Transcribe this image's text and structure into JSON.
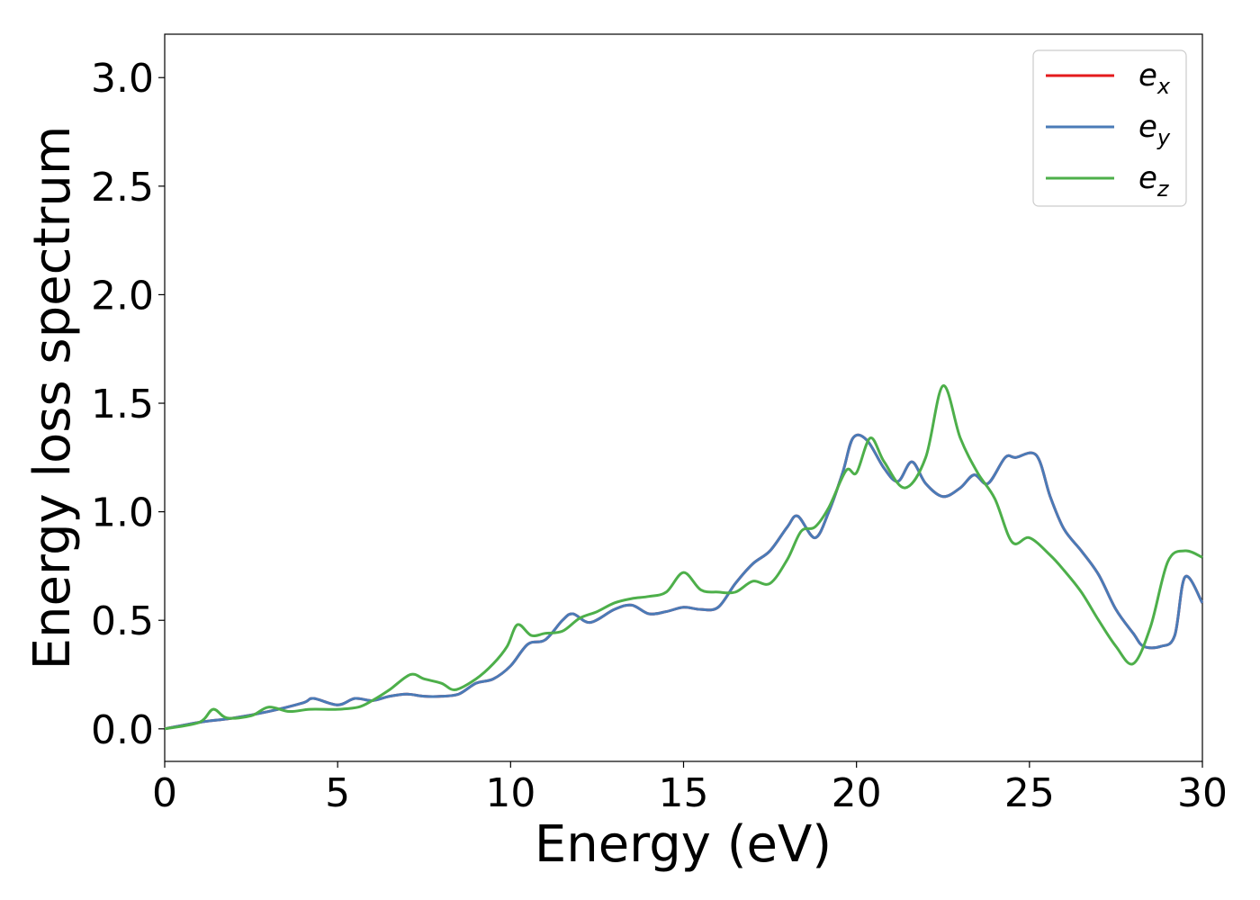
{
  "chart_data": {
    "type": "line",
    "xlabel": "Energy (eV)",
    "ylabel": "Energy loss spectrum",
    "xlim": [
      0,
      30
    ],
    "ylim": [
      -0.15,
      3.2
    ],
    "xticks": [
      0,
      5,
      10,
      15,
      20,
      25,
      30
    ],
    "xtick_labels": [
      "0",
      "5",
      "10",
      "15",
      "20",
      "25",
      "30"
    ],
    "yticks": [
      0.0,
      0.5,
      1.0,
      1.5,
      2.0,
      2.5,
      3.0
    ],
    "ytick_labels": [
      "0.0",
      "0.5",
      "1.0",
      "1.5",
      "2.0",
      "2.5",
      "3.0"
    ],
    "grid": false,
    "legend_position": "top-right",
    "series": [
      {
        "name": "e",
        "sub": "x",
        "color": "#e41a1c",
        "x": [
          0,
          1,
          2,
          3,
          4,
          4.3,
          5,
          5.5,
          6,
          6.5,
          7,
          7.5,
          8,
          8.5,
          9,
          9.5,
          10,
          10.5,
          11,
          11.5,
          11.8,
          12.3,
          13,
          13.5,
          14,
          14.5,
          15,
          15.5,
          16,
          16.5,
          17,
          17.5,
          18,
          18.3,
          18.8,
          19.2,
          19.6,
          19.9,
          20.3,
          20.8,
          21.2,
          21.6,
          22,
          22.5,
          23,
          23.4,
          23.8,
          24.3,
          24.6,
          25.2,
          25.6,
          26,
          26.5,
          27,
          27.5,
          28,
          28.3,
          28.8,
          29.2,
          29.5,
          30
        ],
        "y": [
          0,
          0.03,
          0.05,
          0.08,
          0.12,
          0.14,
          0.11,
          0.14,
          0.13,
          0.15,
          0.16,
          0.15,
          0.15,
          0.16,
          0.21,
          0.23,
          0.29,
          0.39,
          0.41,
          0.5,
          0.53,
          0.49,
          0.55,
          0.57,
          0.53,
          0.54,
          0.56,
          0.55,
          0.56,
          0.67,
          0.76,
          0.82,
          0.93,
          0.98,
          0.88,
          1.0,
          1.18,
          1.34,
          1.33,
          1.2,
          1.14,
          1.23,
          1.13,
          1.07,
          1.11,
          1.17,
          1.13,
          1.25,
          1.25,
          1.26,
          1.07,
          0.92,
          0.82,
          0.71,
          0.55,
          0.44,
          0.38,
          0.38,
          0.43,
          0.7,
          0.58
        ]
      },
      {
        "name": "e",
        "sub": "y",
        "color": "#4a7bb7",
        "x": [
          0,
          1,
          2,
          3,
          4,
          4.3,
          5,
          5.5,
          6,
          6.5,
          7,
          7.5,
          8,
          8.5,
          9,
          9.5,
          10,
          10.5,
          11,
          11.5,
          11.8,
          12.3,
          13,
          13.5,
          14,
          14.5,
          15,
          15.5,
          16,
          16.5,
          17,
          17.5,
          18,
          18.3,
          18.8,
          19.2,
          19.6,
          19.9,
          20.3,
          20.8,
          21.2,
          21.6,
          22,
          22.5,
          23,
          23.4,
          23.8,
          24.3,
          24.6,
          25.2,
          25.6,
          26,
          26.5,
          27,
          27.5,
          28,
          28.3,
          28.8,
          29.2,
          29.5,
          30
        ],
        "y": [
          0,
          0.03,
          0.05,
          0.08,
          0.12,
          0.14,
          0.11,
          0.14,
          0.13,
          0.15,
          0.16,
          0.15,
          0.15,
          0.16,
          0.21,
          0.23,
          0.29,
          0.39,
          0.41,
          0.5,
          0.53,
          0.49,
          0.55,
          0.57,
          0.53,
          0.54,
          0.56,
          0.55,
          0.56,
          0.67,
          0.76,
          0.82,
          0.93,
          0.98,
          0.88,
          1.0,
          1.18,
          1.34,
          1.33,
          1.2,
          1.14,
          1.23,
          1.13,
          1.07,
          1.11,
          1.17,
          1.13,
          1.25,
          1.25,
          1.26,
          1.07,
          0.92,
          0.82,
          0.71,
          0.55,
          0.44,
          0.38,
          0.38,
          0.43,
          0.7,
          0.58
        ]
      },
      {
        "name": "e",
        "sub": "z",
        "color": "#4daf4a",
        "x": [
          0,
          1,
          1.4,
          1.8,
          2.5,
          3,
          3.6,
          4.2,
          5,
          5.6,
          6,
          6.5,
          7.1,
          7.5,
          8,
          8.4,
          9,
          9.5,
          9.9,
          10.2,
          10.6,
          11,
          11.5,
          12,
          12.5,
          13,
          13.5,
          14,
          14.5,
          15,
          15.5,
          16,
          16.5,
          17,
          17.5,
          18,
          18.4,
          18.8,
          19.2,
          19.7,
          20,
          20.4,
          20.8,
          21.4,
          22,
          22.5,
          23,
          23.5,
          24,
          24.5,
          25,
          25.6,
          26,
          26.5,
          27,
          27.5,
          28,
          28.5,
          29,
          29.5,
          30
        ],
        "y": [
          0,
          0.03,
          0.09,
          0.05,
          0.06,
          0.1,
          0.08,
          0.09,
          0.09,
          0.1,
          0.13,
          0.18,
          0.25,
          0.23,
          0.21,
          0.18,
          0.23,
          0.3,
          0.38,
          0.48,
          0.43,
          0.44,
          0.45,
          0.51,
          0.54,
          0.58,
          0.6,
          0.61,
          0.63,
          0.72,
          0.64,
          0.63,
          0.63,
          0.68,
          0.67,
          0.78,
          0.91,
          0.93,
          1.02,
          1.19,
          1.18,
          1.34,
          1.23,
          1.11,
          1.25,
          1.58,
          1.34,
          1.18,
          1.06,
          0.86,
          0.88,
          0.8,
          0.73,
          0.63,
          0.5,
          0.38,
          0.3,
          0.47,
          0.77,
          0.82,
          0.79
        ]
      }
    ]
  }
}
